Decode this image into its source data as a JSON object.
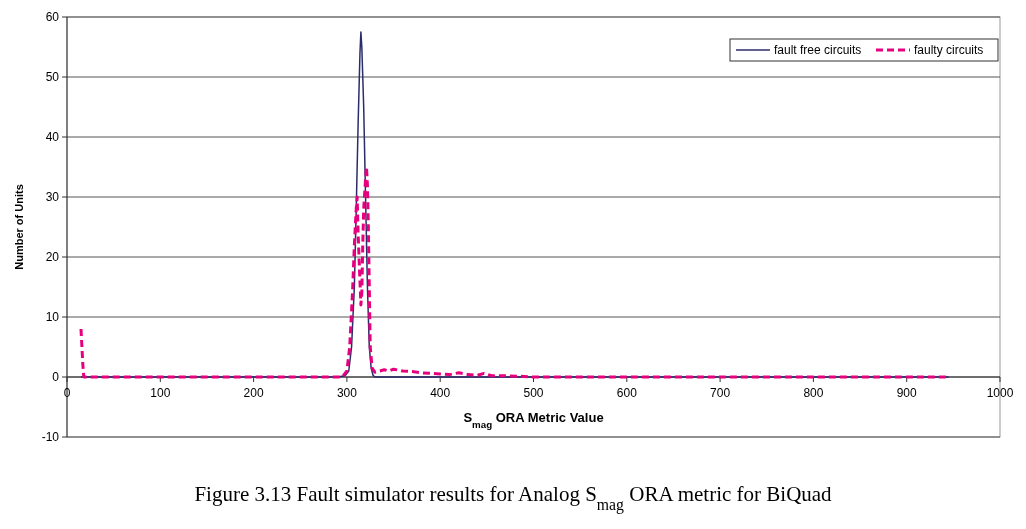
{
  "chart_data": {
    "type": "line",
    "xlabel": "S$_{mag}$ ORA Metric Value",
    "ylabel": "Number of Units",
    "annotations": [
      "Figure 3.13 Fault simulator results for Analog S$_{mag}$ ORA metric for BiQuad"
    ],
    "xlim": [
      0,
      1000
    ],
    "xticks": [
      0,
      100,
      200,
      300,
      400,
      500,
      600,
      700,
      800,
      900,
      1000
    ],
    "ylim": [
      -10,
      60
    ],
    "yticks": [
      -10,
      0,
      10,
      20,
      30,
      40,
      50,
      60
    ],
    "grid": "y",
    "legend": "top right",
    "marker": "none",
    "series": [
      {
        "name": "fault free circuits",
        "color": "#2b2d6b",
        "line_style": "solid",
        "x": [
          15,
          290,
          298,
          302,
          305,
          308,
          310,
          312,
          314,
          315,
          316,
          318,
          320,
          322,
          324,
          326,
          328,
          330,
          335,
          945
        ],
        "values": [
          0,
          0,
          0.2,
          1,
          5,
          15,
          28,
          42,
          54,
          57.5,
          55,
          45,
          30,
          15,
          5,
          1.5,
          0.3,
          0,
          0,
          0
        ]
      },
      {
        "name": "faulty circuits",
        "color": "#e6007e",
        "line_style": "dashed",
        "x": [
          15,
          16,
          17,
          18,
          295,
          300,
          303,
          306,
          308,
          310,
          311,
          312,
          313,
          314,
          315,
          316,
          317,
          318,
          320,
          321,
          322,
          323,
          324,
          325,
          327,
          330,
          335,
          340,
          345,
          350,
          360,
          370,
          380,
          400,
          410,
          420,
          430,
          440,
          447,
          455,
          470,
          490,
          500,
          945
        ],
        "values": [
          8,
          5,
          2,
          0,
          0,
          1,
          5,
          14,
          22,
          28,
          30,
          24,
          20,
          16,
          12,
          14,
          22,
          28,
          33,
          35,
          32,
          25,
          15,
          5,
          1.5,
          0.8,
          1,
          1.2,
          1,
          1.3,
          1,
          0.9,
          0.7,
          0.5,
          0.4,
          0.7,
          0.4,
          0.3,
          0.6,
          0.2,
          0.2,
          0.1,
          0,
          0
        ]
      }
    ]
  }
}
